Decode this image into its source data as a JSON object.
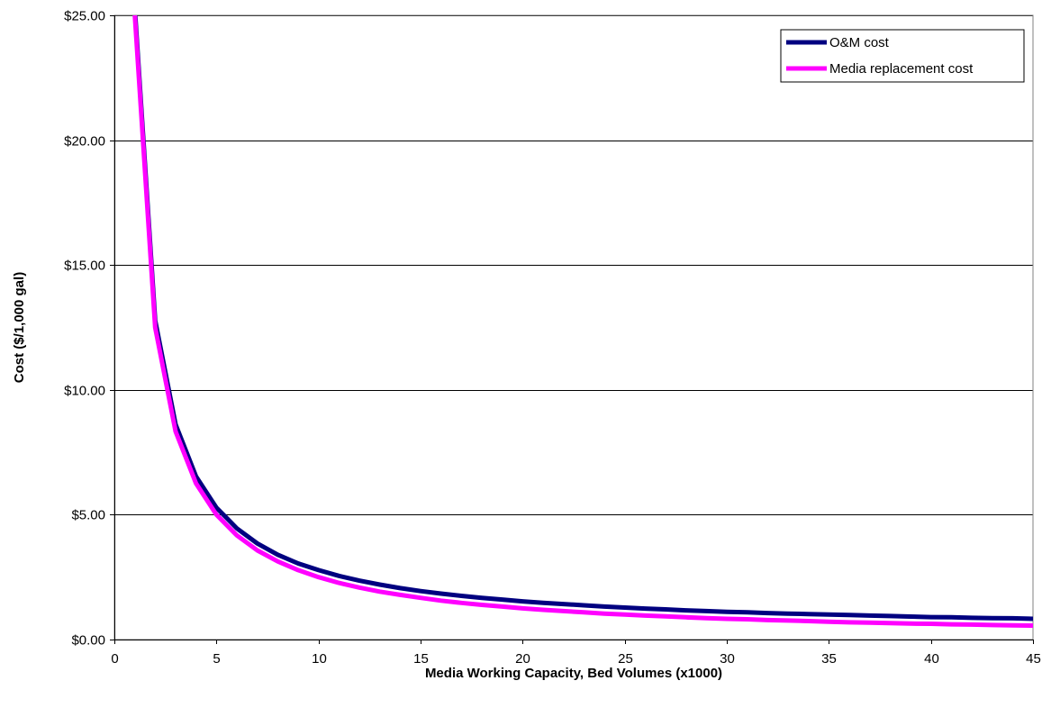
{
  "chart_data": {
    "type": "line",
    "xlabel": "Media Working Capacity, Bed Volumes (x1000)",
    "ylabel": "Cost ($/1,000 gal)",
    "xlim": [
      0,
      45
    ],
    "ylim": [
      0,
      25
    ],
    "x_ticks": [
      0,
      5,
      10,
      15,
      20,
      25,
      30,
      35,
      40,
      45
    ],
    "x_tick_labels": [
      "0",
      "5",
      "10",
      "15",
      "20",
      "25",
      "30",
      "35",
      "40",
      "45"
    ],
    "y_ticks": [
      0,
      5,
      10,
      15,
      20,
      25
    ],
    "y_tick_labels": [
      "$0.00",
      "$5.00",
      "$10.00",
      "$15.00",
      "$20.00",
      "$25.00"
    ],
    "grid": "horizontal",
    "legend_position": "top-right",
    "x": [
      1,
      2,
      3,
      4,
      5,
      6,
      7,
      8,
      9,
      10,
      11,
      12,
      13,
      14,
      15,
      16,
      17,
      18,
      19,
      20,
      21,
      22,
      23,
      24,
      25,
      26,
      27,
      28,
      29,
      30,
      31,
      32,
      33,
      34,
      35,
      36,
      37,
      38,
      39,
      40,
      41,
      42,
      43,
      44,
      45
    ],
    "series": [
      {
        "name": "O&M cost",
        "color": "#000080",
        "values": [
          25.27,
          12.78,
          8.61,
          6.53,
          5.28,
          4.45,
          3.85,
          3.4,
          3.05,
          2.78,
          2.55,
          2.36,
          2.2,
          2.06,
          1.94,
          1.84,
          1.75,
          1.67,
          1.6,
          1.53,
          1.47,
          1.42,
          1.37,
          1.32,
          1.28,
          1.24,
          1.21,
          1.17,
          1.14,
          1.11,
          1.09,
          1.06,
          1.04,
          1.02,
          1.0,
          0.98,
          0.96,
          0.94,
          0.92,
          0.9,
          0.89,
          0.87,
          0.86,
          0.85,
          0.83
        ]
      },
      {
        "name": "Media replacement cost",
        "color": "#ff00ff",
        "values": [
          25.0,
          12.5,
          8.33,
          6.25,
          5.0,
          4.17,
          3.57,
          3.13,
          2.78,
          2.5,
          2.27,
          2.08,
          1.92,
          1.79,
          1.67,
          1.56,
          1.47,
          1.39,
          1.32,
          1.25,
          1.19,
          1.14,
          1.09,
          1.04,
          1.0,
          0.96,
          0.93,
          0.89,
          0.86,
          0.83,
          0.81,
          0.78,
          0.76,
          0.74,
          0.71,
          0.69,
          0.68,
          0.66,
          0.64,
          0.63,
          0.61,
          0.6,
          0.58,
          0.57,
          0.56
        ]
      }
    ]
  }
}
